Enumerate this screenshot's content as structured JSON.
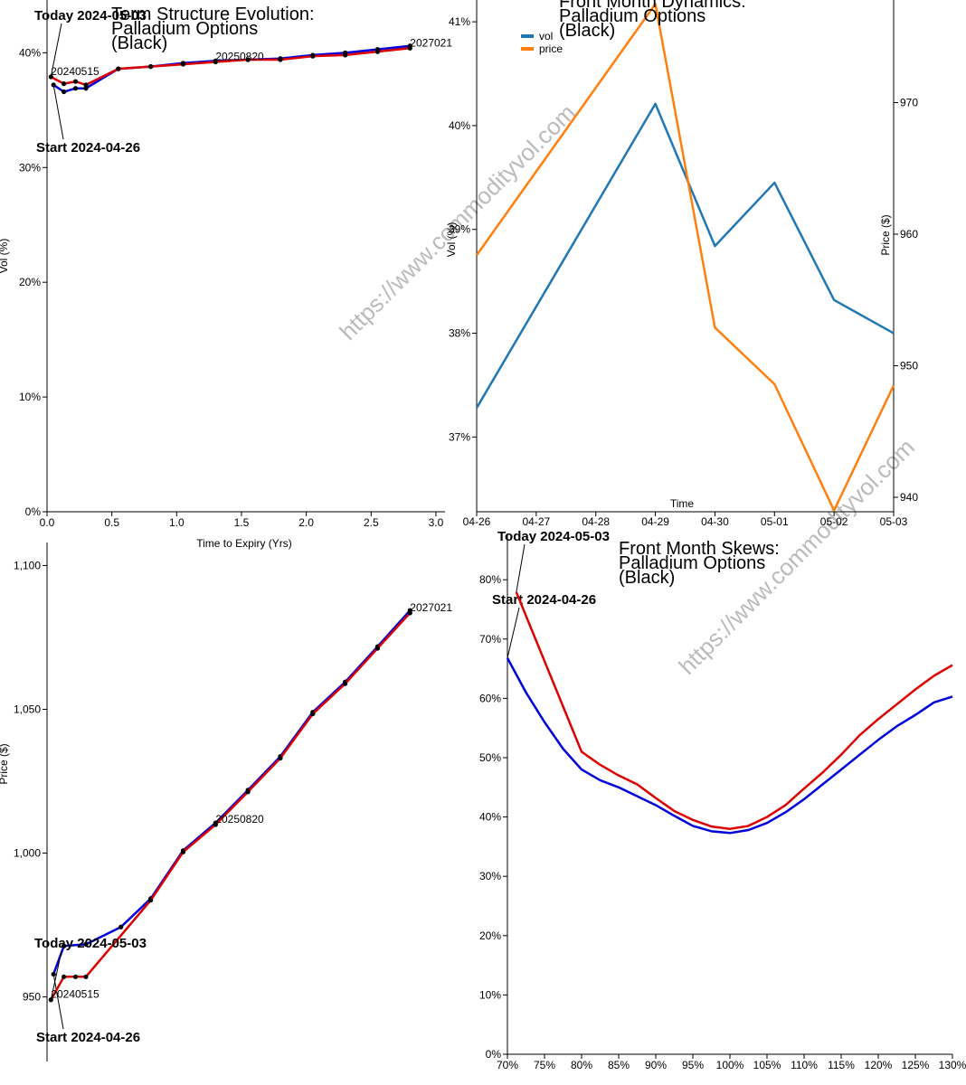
{
  "watermark": "https://www.commodityvol.com",
  "chart_data": [
    {
      "type": "line",
      "title": [
        "Term Structure Evolution:",
        "Palladium Options",
        "(Black)"
      ],
      "x_label": "Time to Expiry (Yrs)",
      "y_label": "Vol (%)",
      "markers": true,
      "xlim": [
        0,
        3.07
      ],
      "ylim": [
        0,
        44.6
      ],
      "xticks": [
        {
          "value": 0,
          "label": "0.0"
        },
        0.5,
        {
          "value": 1,
          "label": "1.0"
        },
        1.5,
        {
          "value": 2,
          "label": "2.0"
        },
        2.5,
        {
          "value": 3,
          "label": "3.0"
        }
      ],
      "yticks": [
        {
          "value": 0,
          "label": "0%"
        },
        {
          "value": 10,
          "label": "10%"
        },
        {
          "value": 20,
          "label": "20%"
        },
        {
          "value": 30,
          "label": "30%"
        },
        {
          "value": 40,
          "label": "40%"
        }
      ],
      "series": [
        {
          "label": "Start 2024-04-26",
          "color": "#0000dd",
          "x": [
            0.05,
            0.13,
            0.22,
            0.3,
            0.55,
            0.8,
            1.05,
            1.3,
            1.55,
            1.8,
            2.05,
            2.3,
            2.55,
            2.8
          ],
          "values": [
            37.2,
            36.6,
            36.9,
            36.9,
            38.6,
            38.8,
            39.1,
            39.3,
            39.4,
            39.5,
            39.8,
            40.0,
            40.3,
            40.6
          ]
        },
        {
          "label": "Today 2024-05-03",
          "color": "#dd0000",
          "x": [
            0.03,
            0.13,
            0.22,
            0.3,
            0.55,
            0.8,
            1.05,
            1.3,
            1.55,
            1.8,
            2.05,
            2.3,
            2.55,
            2.8
          ],
          "values": [
            37.9,
            37.3,
            37.5,
            37.2,
            38.6,
            38.8,
            39.0,
            39.2,
            39.4,
            39.4,
            39.7,
            39.8,
            40.1,
            40.4
          ]
        }
      ],
      "expiry_labels": [
        {
          "text": "20240515",
          "x": 0.03
        },
        {
          "text": "20250820",
          "x": 1.3
        },
        {
          "text": "2027021",
          "x": 2.8
        }
      ]
    },
    {
      "type": "line",
      "title": [
        "Front Month Dynamics:",
        "Palladium Options",
        "(Black)"
      ],
      "x_label": "Time",
      "y_label": "Vol (%)",
      "y2_label": "Price ($)",
      "legend": "upper left",
      "categories": [
        "04-26",
        "04-27",
        "04-28",
        "04-29",
        "04-30",
        "05-01",
        "05-02",
        "05-03"
      ],
      "ylim": [
        36.28,
        41.21
      ],
      "y2lim": [
        938.9,
        977.8
      ],
      "yticks": [
        {
          "value": 37,
          "label": "37%"
        },
        {
          "value": 38,
          "label": "38%"
        },
        {
          "value": 39,
          "label": "39%"
        },
        {
          "value": 40,
          "label": "40%"
        },
        {
          "value": 41,
          "label": "41%"
        }
      ],
      "y2ticks": [
        940,
        950,
        960,
        970
      ],
      "series": [
        {
          "name": "vol",
          "color": "#1f77b4",
          "x": [
            "04-26",
            "04-29",
            "04-30",
            "05-01",
            "05-02",
            "05-03"
          ],
          "values": [
            37.28,
            40.21,
            38.84,
            39.45,
            38.32,
            38.0
          ]
        },
        {
          "name": "price",
          "color": "#ff7f0e",
          "axis": "y2",
          "x": [
            "04-26",
            "04-29",
            "04-30",
            "05-01",
            "05-02",
            "05-03"
          ],
          "values": [
            958.4,
            977.5,
            952.9,
            948.6,
            939.0,
            948.5
          ]
        }
      ]
    },
    {
      "type": "line",
      "y_label": "Price ($)",
      "markers": true,
      "xlim": [
        0,
        3.07
      ],
      "ylim": [
        928.8,
        1108
      ],
      "yticks": [
        950,
        {
          "value": 1000,
          "label": "1,000"
        },
        {
          "value": 1050,
          "label": "1,050"
        },
        {
          "value": 1100,
          "label": "1,100"
        }
      ],
      "series": [
        {
          "label": "Start 2024-04-26",
          "color": "#0000dd",
          "x": [
            0.05,
            0.13,
            0.3,
            0.57,
            0.8,
            1.05,
            1.3,
            1.55,
            1.8,
            2.05,
            2.3,
            2.55,
            2.8
          ],
          "values": [
            957.9,
            967.7,
            968.3,
            974.3,
            984.2,
            1000.9,
            1010.5,
            1021.9,
            1033.6,
            1049.0,
            1059.5,
            1071.8,
            1084.4
          ]
        },
        {
          "label": "Today 2024-05-03",
          "color": "#dd0000",
          "x": [
            0.03,
            0.13,
            0.22,
            0.3,
            0.8,
            1.05,
            1.3,
            1.55,
            1.8,
            2.05,
            2.3,
            2.55,
            2.8
          ],
          "values": [
            949.0,
            957.0,
            957.0,
            957.0,
            983.6,
            1000.4,
            1009.9,
            1021.3,
            1033.0,
            1048.4,
            1058.9,
            1071.2,
            1083.5
          ]
        }
      ],
      "expiry_labels": [
        {
          "text": "20240515",
          "x": 0.03
        },
        {
          "text": "20250820",
          "x": 1.3
        },
        {
          "text": "2027021",
          "x": 2.8
        }
      ]
    },
    {
      "type": "line",
      "title": [
        "Front Month Skews:",
        "Palladium Options",
        "(Black)"
      ],
      "xlim": [
        70,
        130
      ],
      "ylim": [
        0,
        87.8
      ],
      "xticks": [
        {
          "value": 70,
          "label": "70%"
        },
        {
          "value": 75,
          "label": "75%"
        },
        {
          "value": 80,
          "label": "80%"
        },
        {
          "value": 85,
          "label": "85%"
        },
        {
          "value": 90,
          "label": "90%"
        },
        {
          "value": 95,
          "label": "95%"
        },
        {
          "value": 100,
          "label": "100%"
        },
        {
          "value": 105,
          "label": "105%"
        },
        {
          "value": 110,
          "label": "110%"
        },
        {
          "value": 115,
          "label": "115%"
        },
        {
          "value": 120,
          "label": "120%"
        },
        {
          "value": 125,
          "label": "125%"
        },
        {
          "value": 130,
          "label": "130%"
        }
      ],
      "yticks": [
        {
          "value": 0,
          "label": "0%"
        },
        {
          "value": 10,
          "label": "10%"
        },
        {
          "value": 20,
          "label": "20%"
        },
        {
          "value": 30,
          "label": "30%"
        },
        {
          "value": 40,
          "label": "40%"
        },
        {
          "value": 50,
          "label": "50%"
        },
        {
          "value": 60,
          "label": "60%"
        },
        {
          "value": 70,
          "label": "70%"
        },
        {
          "value": 80,
          "label": "80%"
        }
      ],
      "series": [
        {
          "label": "Start 2024-04-26",
          "color": "#0000dd",
          "x": [
            70,
            72.5,
            75,
            77.5,
            80,
            82.5,
            85,
            87.5,
            90,
            92.5,
            95,
            97.5,
            100,
            102.5,
            105,
            107.5,
            110,
            112.5,
            115,
            117.5,
            120,
            122.5,
            125,
            127.5,
            130
          ],
          "values": [
            66.8,
            61.0,
            56.0,
            51.5,
            48.0,
            46.2,
            45.0,
            43.5,
            42.0,
            40.2,
            38.5,
            37.6,
            37.3,
            37.8,
            39.0,
            40.8,
            43.0,
            45.5,
            48.0,
            50.5,
            53.0,
            55.3,
            57.2,
            59.3,
            60.3
          ]
        },
        {
          "label": "Today 2024-05-03",
          "color": "#dd0000",
          "x": [
            71.2,
            80,
            82.5,
            85,
            87.5,
            90,
            92.5,
            95,
            97.5,
            100,
            102.5,
            105,
            107.5,
            110,
            112.5,
            115,
            117.5,
            120,
            122.5,
            125,
            127.5,
            130
          ],
          "values": [
            77.9,
            51.0,
            48.8,
            47.0,
            45.5,
            43.2,
            41.0,
            39.5,
            38.4,
            38.0,
            38.5,
            40.0,
            42.0,
            44.8,
            47.5,
            50.5,
            53.8,
            56.5,
            59.0,
            61.5,
            63.8,
            65.6
          ]
        }
      ]
    }
  ]
}
